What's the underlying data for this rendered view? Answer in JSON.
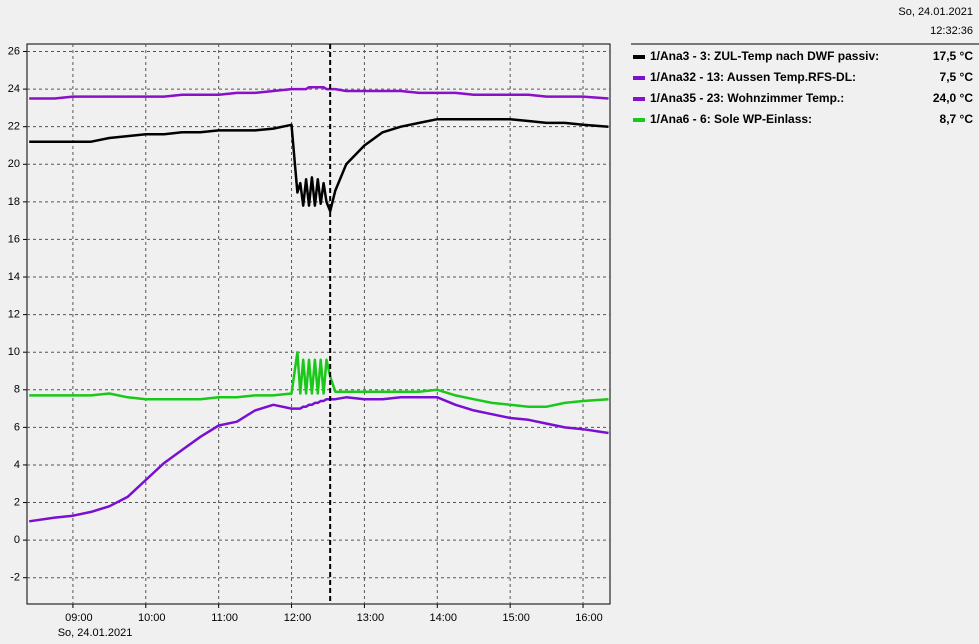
{
  "header": {
    "date": "So, 24.01.2021",
    "time": "12:32:36"
  },
  "chart_data": {
    "type": "line",
    "x_date_label": "So, 24.01.2021",
    "cursor_x": 12.53,
    "xlim": [
      8.37,
      16.37
    ],
    "xticks": [
      {
        "value": 9,
        "label": "09:00"
      },
      {
        "value": 10,
        "label": "10:00"
      },
      {
        "value": 11,
        "label": "11:00"
      },
      {
        "value": 12,
        "label": "12:00"
      },
      {
        "value": 13,
        "label": "13:00"
      },
      {
        "value": 14,
        "label": "14:00"
      },
      {
        "value": 15,
        "label": "15:00"
      },
      {
        "value": 16,
        "label": "16:00"
      }
    ],
    "ylim": [
      -3.4,
      26.4
    ],
    "yticks": [
      -2,
      0,
      2,
      4,
      6,
      8,
      10,
      12,
      14,
      16,
      18,
      20,
      22,
      24,
      26
    ],
    "grid": true,
    "x": [
      8.4,
      8.75,
      9.0,
      9.25,
      9.5,
      9.75,
      10.0,
      10.25,
      10.5,
      10.75,
      11.0,
      11.25,
      11.5,
      11.75,
      12.0,
      12.08,
      12.12,
      12.16,
      12.2,
      12.24,
      12.28,
      12.32,
      12.36,
      12.4,
      12.44,
      12.48,
      12.53,
      12.6,
      12.75,
      13.0,
      13.25,
      13.5,
      13.75,
      14.0,
      14.25,
      14.5,
      14.75,
      15.0,
      15.25,
      15.5,
      15.75,
      16.0,
      16.35
    ],
    "series": [
      {
        "name": "1/Ana3 - 3: ZUL-Temp nach DWF passiv:",
        "current_label": "17,5 °C",
        "color": "#000000",
        "values": [
          21.2,
          21.2,
          21.2,
          21.2,
          21.4,
          21.5,
          21.6,
          21.6,
          21.7,
          21.7,
          21.8,
          21.8,
          21.8,
          21.9,
          22.1,
          18.5,
          19.0,
          17.8,
          19.2,
          17.8,
          19.3,
          17.8,
          19.2,
          17.9,
          19.0,
          18.0,
          17.5,
          18.6,
          20.0,
          21.0,
          21.7,
          22.0,
          22.2,
          22.4,
          22.4,
          22.4,
          22.4,
          22.4,
          22.3,
          22.2,
          22.2,
          22.1,
          22.0
        ]
      },
      {
        "name": "1/Ana32 - 13: Aussen Temp.RFS-DL:",
        "current_label": "7,5 °C",
        "color": "#7a0fd2",
        "values": [
          1.0,
          1.2,
          1.3,
          1.5,
          1.8,
          2.3,
          3.2,
          4.1,
          4.8,
          5.5,
          6.1,
          6.3,
          6.9,
          7.2,
          7.0,
          7.0,
          7.0,
          7.1,
          7.1,
          7.2,
          7.2,
          7.3,
          7.3,
          7.4,
          7.4,
          7.5,
          7.5,
          7.5,
          7.6,
          7.5,
          7.5,
          7.6,
          7.6,
          7.6,
          7.2,
          6.9,
          6.7,
          6.5,
          6.4,
          6.2,
          6.0,
          5.9,
          5.7
        ]
      },
      {
        "name": "1/Ana35 - 23: Wohnzimmer Temp.:",
        "current_label": "24,0 °C",
        "color": "#8a0fc8",
        "values": [
          23.5,
          23.5,
          23.6,
          23.6,
          23.6,
          23.6,
          23.6,
          23.6,
          23.7,
          23.7,
          23.7,
          23.8,
          23.8,
          23.9,
          24.0,
          24.0,
          24.0,
          24.0,
          24.0,
          24.1,
          24.1,
          24.1,
          24.1,
          24.1,
          24.1,
          24.0,
          24.0,
          24.0,
          23.9,
          23.9,
          23.9,
          23.9,
          23.8,
          23.8,
          23.8,
          23.7,
          23.7,
          23.7,
          23.7,
          23.6,
          23.6,
          23.6,
          23.5
        ]
      },
      {
        "name": "1/Ana6 - 6: Sole WP-Einlass:",
        "current_label": "8,7 °C",
        "color": "#19c819",
        "values": [
          7.7,
          7.7,
          7.7,
          7.7,
          7.8,
          7.6,
          7.5,
          7.5,
          7.5,
          7.5,
          7.6,
          7.6,
          7.7,
          7.7,
          7.8,
          10.0,
          7.8,
          9.6,
          7.8,
          9.6,
          7.8,
          9.6,
          7.8,
          9.6,
          7.8,
          9.6,
          8.7,
          7.9,
          7.9,
          7.9,
          7.9,
          7.9,
          7.9,
          8.0,
          7.7,
          7.5,
          7.3,
          7.2,
          7.1,
          7.1,
          7.3,
          7.4,
          7.5
        ]
      }
    ]
  }
}
